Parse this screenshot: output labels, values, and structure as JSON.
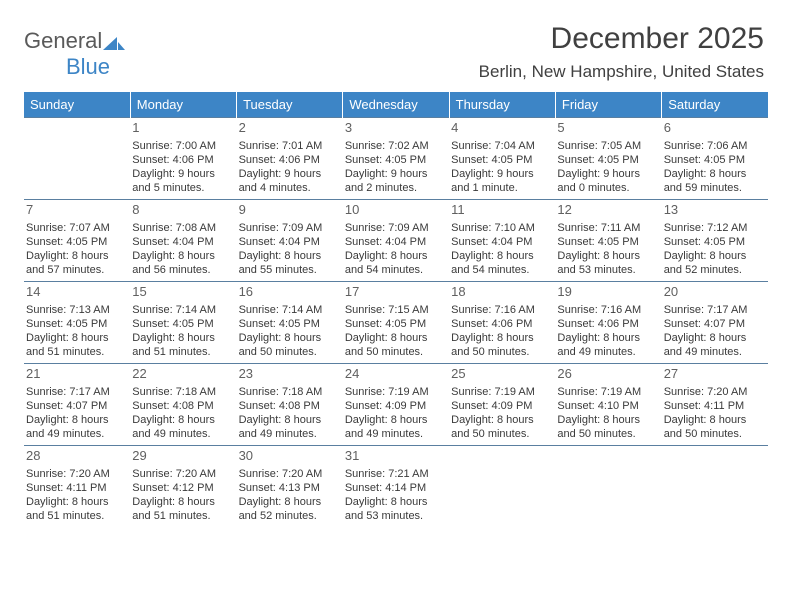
{
  "logo": {
    "text_a": "General",
    "text_b": "Blue",
    "color_a": "#6a6a6a",
    "color_b": "#3d85c6"
  },
  "title": "December 2025",
  "location": "Berlin, New Hampshire, United States",
  "header_bg": "#3d85c6",
  "header_text_color": "#ffffff",
  "row_border_color": "#5a7fa0",
  "font_cell_size": 11,
  "font_header_size": 13,
  "font_title_size": 30,
  "dow": [
    "Sunday",
    "Monday",
    "Tuesday",
    "Wednesday",
    "Thursday",
    "Friday",
    "Saturday"
  ],
  "weeks": [
    [
      null,
      {
        "n": "1",
        "sr": "7:00 AM",
        "ss": "4:06 PM",
        "dl": "9 hours and 5 minutes."
      },
      {
        "n": "2",
        "sr": "7:01 AM",
        "ss": "4:06 PM",
        "dl": "9 hours and 4 minutes."
      },
      {
        "n": "3",
        "sr": "7:02 AM",
        "ss": "4:05 PM",
        "dl": "9 hours and 2 minutes."
      },
      {
        "n": "4",
        "sr": "7:04 AM",
        "ss": "4:05 PM",
        "dl": "9 hours and 1 minute."
      },
      {
        "n": "5",
        "sr": "7:05 AM",
        "ss": "4:05 PM",
        "dl": "9 hours and 0 minutes."
      },
      {
        "n": "6",
        "sr": "7:06 AM",
        "ss": "4:05 PM",
        "dl": "8 hours and 59 minutes."
      }
    ],
    [
      {
        "n": "7",
        "sr": "7:07 AM",
        "ss": "4:05 PM",
        "dl": "8 hours and 57 minutes."
      },
      {
        "n": "8",
        "sr": "7:08 AM",
        "ss": "4:04 PM",
        "dl": "8 hours and 56 minutes."
      },
      {
        "n": "9",
        "sr": "7:09 AM",
        "ss": "4:04 PM",
        "dl": "8 hours and 55 minutes."
      },
      {
        "n": "10",
        "sr": "7:09 AM",
        "ss": "4:04 PM",
        "dl": "8 hours and 54 minutes."
      },
      {
        "n": "11",
        "sr": "7:10 AM",
        "ss": "4:04 PM",
        "dl": "8 hours and 54 minutes."
      },
      {
        "n": "12",
        "sr": "7:11 AM",
        "ss": "4:05 PM",
        "dl": "8 hours and 53 minutes."
      },
      {
        "n": "13",
        "sr": "7:12 AM",
        "ss": "4:05 PM",
        "dl": "8 hours and 52 minutes."
      }
    ],
    [
      {
        "n": "14",
        "sr": "7:13 AM",
        "ss": "4:05 PM",
        "dl": "8 hours and 51 minutes."
      },
      {
        "n": "15",
        "sr": "7:14 AM",
        "ss": "4:05 PM",
        "dl": "8 hours and 51 minutes."
      },
      {
        "n": "16",
        "sr": "7:14 AM",
        "ss": "4:05 PM",
        "dl": "8 hours and 50 minutes."
      },
      {
        "n": "17",
        "sr": "7:15 AM",
        "ss": "4:05 PM",
        "dl": "8 hours and 50 minutes."
      },
      {
        "n": "18",
        "sr": "7:16 AM",
        "ss": "4:06 PM",
        "dl": "8 hours and 50 minutes."
      },
      {
        "n": "19",
        "sr": "7:16 AM",
        "ss": "4:06 PM",
        "dl": "8 hours and 49 minutes."
      },
      {
        "n": "20",
        "sr": "7:17 AM",
        "ss": "4:07 PM",
        "dl": "8 hours and 49 minutes."
      }
    ],
    [
      {
        "n": "21",
        "sr": "7:17 AM",
        "ss": "4:07 PM",
        "dl": "8 hours and 49 minutes."
      },
      {
        "n": "22",
        "sr": "7:18 AM",
        "ss": "4:08 PM",
        "dl": "8 hours and 49 minutes."
      },
      {
        "n": "23",
        "sr": "7:18 AM",
        "ss": "4:08 PM",
        "dl": "8 hours and 49 minutes."
      },
      {
        "n": "24",
        "sr": "7:19 AM",
        "ss": "4:09 PM",
        "dl": "8 hours and 49 minutes."
      },
      {
        "n": "25",
        "sr": "7:19 AM",
        "ss": "4:09 PM",
        "dl": "8 hours and 50 minutes."
      },
      {
        "n": "26",
        "sr": "7:19 AM",
        "ss": "4:10 PM",
        "dl": "8 hours and 50 minutes."
      },
      {
        "n": "27",
        "sr": "7:20 AM",
        "ss": "4:11 PM",
        "dl": "8 hours and 50 minutes."
      }
    ],
    [
      {
        "n": "28",
        "sr": "7:20 AM",
        "ss": "4:11 PM",
        "dl": "8 hours and 51 minutes."
      },
      {
        "n": "29",
        "sr": "7:20 AM",
        "ss": "4:12 PM",
        "dl": "8 hours and 51 minutes."
      },
      {
        "n": "30",
        "sr": "7:20 AM",
        "ss": "4:13 PM",
        "dl": "8 hours and 52 minutes."
      },
      {
        "n": "31",
        "sr": "7:21 AM",
        "ss": "4:14 PM",
        "dl": "8 hours and 53 minutes."
      },
      null,
      null,
      null
    ]
  ],
  "labels": {
    "sunrise": "Sunrise:",
    "sunset": "Sunset:",
    "daylight": "Daylight:"
  }
}
